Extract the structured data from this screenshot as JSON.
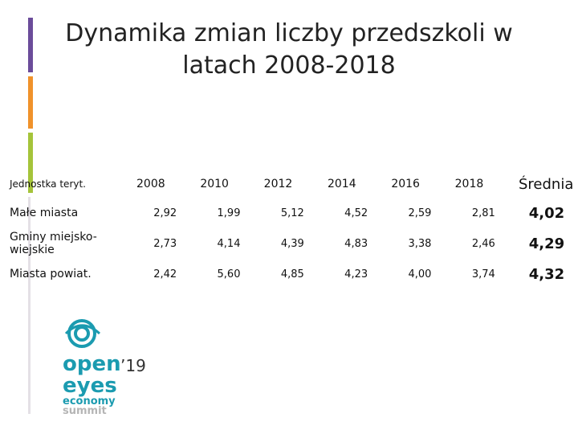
{
  "header": {
    "title": "Dynamika zmian liczby przedszkoli w latach 2008-2018"
  },
  "table": {
    "columns": [
      "Jednostka teryt.",
      "2008",
      "2010",
      "2012",
      "2014",
      "2016",
      "2018",
      "Średnia"
    ],
    "rows": [
      [
        "Małe miasta",
        "2,92",
        "1,99",
        "5,12",
        "4,52",
        "2,59",
        "2,81",
        "4,02"
      ],
      [
        "Gminy miejsko-wiejskie",
        "2,73",
        "4,14",
        "4,39",
        "4,83",
        "3,38",
        "2,46",
        "4,29"
      ],
      [
        "Miasta powiat.",
        "2,42",
        "5,60",
        "4,85",
        "4,23",
        "4,00",
        "3,74",
        "4,32"
      ]
    ]
  },
  "logo": {
    "line1": "open",
    "year": "’19",
    "line2": "eyes",
    "line3": "economy",
    "line4": "summit"
  }
}
